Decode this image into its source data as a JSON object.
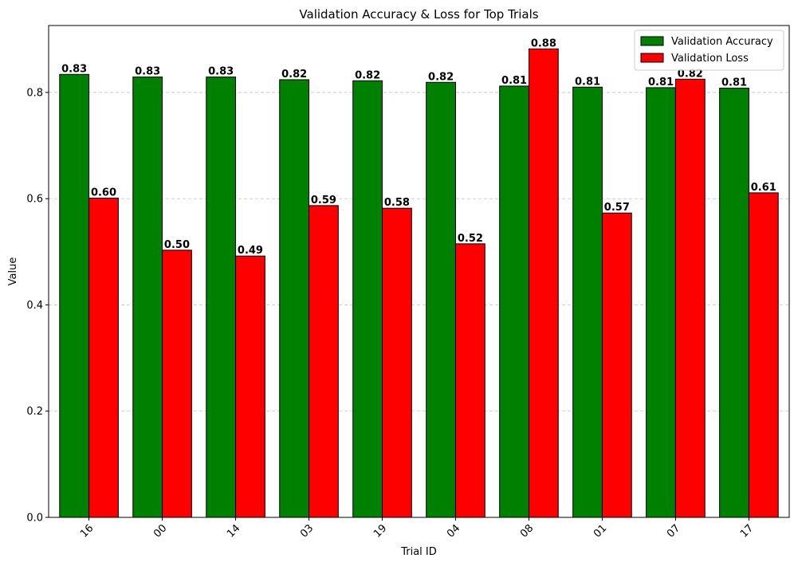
{
  "chart_data": {
    "type": "bar",
    "title": "Validation Accuracy & Loss for Top Trials",
    "xlabel": "Trial ID",
    "ylabel": "Value",
    "categories": [
      "16",
      "00",
      "14",
      "03",
      "19",
      "04",
      "08",
      "01",
      "07",
      "17"
    ],
    "series": [
      {
        "name": "Validation Accuracy",
        "color": "#008000",
        "values": [
          0.834,
          0.829,
          0.829,
          0.824,
          0.822,
          0.819,
          0.812,
          0.81,
          0.809,
          0.808
        ],
        "labels": [
          "0.83",
          "0.83",
          "0.83",
          "0.82",
          "0.82",
          "0.82",
          "0.81",
          "0.81",
          "0.81",
          "0.81"
        ]
      },
      {
        "name": "Validation Loss",
        "color": "#ff0000",
        "values": [
          0.601,
          0.503,
          0.492,
          0.587,
          0.582,
          0.515,
          0.882,
          0.573,
          0.825,
          0.611
        ],
        "labels": [
          "0.60",
          "0.50",
          "0.49",
          "0.59",
          "0.58",
          "0.52",
          "0.88",
          "0.57",
          "0.82",
          "0.61"
        ]
      }
    ],
    "yticks": [
      "0.0",
      "0.2",
      "0.4",
      "0.6",
      "0.8"
    ],
    "ylim": [
      0,
      0.926
    ],
    "grid": "y-dashed",
    "legend_position": "top-right"
  }
}
